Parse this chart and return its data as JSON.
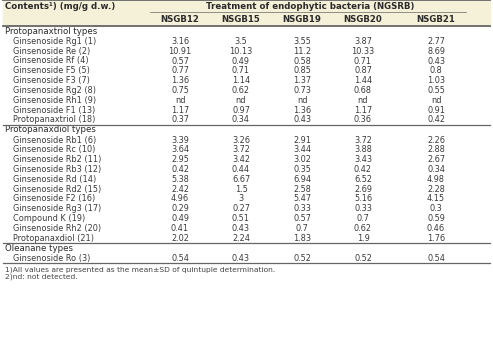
{
  "title_col": "Contents¹) (mg/g d.w.)",
  "header_group": "Treatment of endophytic bacteria (NGSRB)",
  "columns": [
    "NSGB12",
    "NSGB15",
    "NSGB19",
    "NSGB20",
    "NSGB21"
  ],
  "sections": [
    {
      "section_label": "Protopanaxtriol types",
      "rows": [
        [
          "Ginsenoside Rg1 (1)",
          "3.16",
          "3.5",
          "3.55",
          "3.87",
          "2.77"
        ],
        [
          "Ginsenoside Re (2)",
          "10.91",
          "10.13",
          "11.2",
          "10.33",
          "8.69"
        ],
        [
          "Ginsenoside Rf (4)",
          "0.57",
          "0.49",
          "0.58",
          "0.71",
          "0.43"
        ],
        [
          "Ginsenoside F5 (5)",
          "0.77",
          "0.71",
          "0.85",
          "0.87",
          "0.8"
        ],
        [
          "Ginsenoside F3 (7)",
          "1.36",
          "1.14",
          "1.37",
          "1.44",
          "1.03"
        ],
        [
          "Ginsenoside Rg2 (8)",
          "0.75",
          "0.62",
          "0.73",
          "0.68",
          "0.55"
        ],
        [
          "Ginsenoside Rh1 (9)",
          "nd",
          "nd",
          "nd",
          "nd",
          "nd"
        ],
        [
          "Ginsenoside F1 (13)",
          "1.17",
          "0.97",
          "1.36",
          "1.17",
          "0.91"
        ],
        [
          "Protopanaxtriol (18)",
          "0.37",
          "0.34",
          "0.43",
          "0.36",
          "0.42"
        ]
      ]
    },
    {
      "section_label": "Protopanaxdiol types",
      "rows": [
        [
          "Ginsenoside Rb1 (6)",
          "3.39",
          "3.26",
          "2.91",
          "3.72",
          "2.26"
        ],
        [
          "Ginsenoside Rc (10)",
          "3.64",
          "3.72",
          "3.44",
          "3.88",
          "2.88"
        ],
        [
          "Ginsenoside Rb2 (11)",
          "2.95",
          "3.42",
          "3.02",
          "3.43",
          "2.67"
        ],
        [
          "Ginsenoside Rb3 (12)",
          "0.42",
          "0.44",
          "0.35",
          "0.42",
          "0.34"
        ],
        [
          "Ginsenoside Rd (14)",
          "5.38",
          "6.67",
          "6.94",
          "6.52",
          "4.98"
        ],
        [
          "Ginsenoside Rd2 (15)",
          "2.42",
          "1.5",
          "2.58",
          "2.69",
          "2.28"
        ],
        [
          "Ginsenoside F2 (16)",
          "4.96",
          "3",
          "5.47",
          "5.16",
          "4.15"
        ],
        [
          "Ginsenoside Rg3 (17)",
          "0.29",
          "0.27",
          "0.33",
          "0.33",
          "0.3"
        ],
        [
          "Compound K (19)",
          "0.49",
          "0.51",
          "0.57",
          "0.7",
          "0.59"
        ],
        [
          "Ginsenoside Rh2 (20)",
          "0.41",
          "0.43",
          "0.7",
          "0.62",
          "0.46"
        ],
        [
          "Protopanaxdiol (21)",
          "2.02",
          "2.24",
          "1.83",
          "1.9",
          "1.76"
        ]
      ]
    },
    {
      "section_label": "Oleanane types",
      "rows": [
        [
          "Ginsenoside Ro (3)",
          "0.54",
          "0.43",
          "0.52",
          "0.52",
          "0.54"
        ]
      ]
    }
  ],
  "footnotes": [
    "1)All values are presented as the mean±SD of quintuple determination.",
    "2)nd: not detected."
  ],
  "bg_header": "#f5f0d8",
  "text_color": "#2a2a2a",
  "data_color": "#3a3a3a",
  "line_color": "#666666"
}
